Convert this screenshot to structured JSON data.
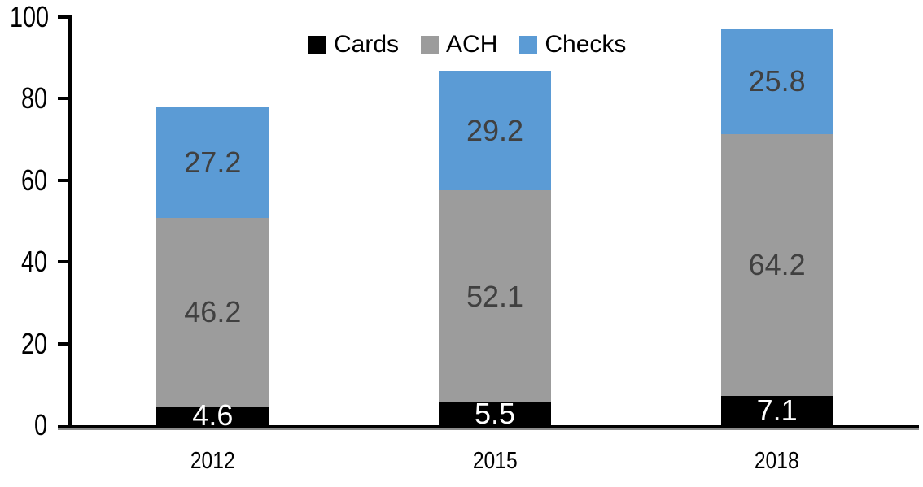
{
  "chart_data": {
    "type": "bar",
    "stacked": true,
    "title": "",
    "xlabel": "",
    "ylabel": "",
    "categories": [
      "2012",
      "2015",
      "2018"
    ],
    "series": [
      {
        "name": "Cards",
        "color": "#000000",
        "label_color": "#ffffff",
        "values": [
          4.6,
          5.5,
          7.1
        ]
      },
      {
        "name": "ACH",
        "color": "#9c9c9c",
        "label_color": "#404040",
        "values": [
          46.2,
          52.1,
          64.2
        ]
      },
      {
        "name": "Checks",
        "color": "#5b9bd5",
        "label_color": "#404040",
        "values": [
          27.2,
          29.2,
          25.8
        ]
      }
    ],
    "stack_totals": [
      78.0,
      86.8,
      97.1
    ],
    "ylim": [
      0,
      100
    ],
    "yticks": [
      0,
      20,
      40,
      60,
      80,
      100
    ],
    "grid": false,
    "legend_position": "top-center",
    "axis_color": "#000000",
    "background": "#ffffff"
  }
}
